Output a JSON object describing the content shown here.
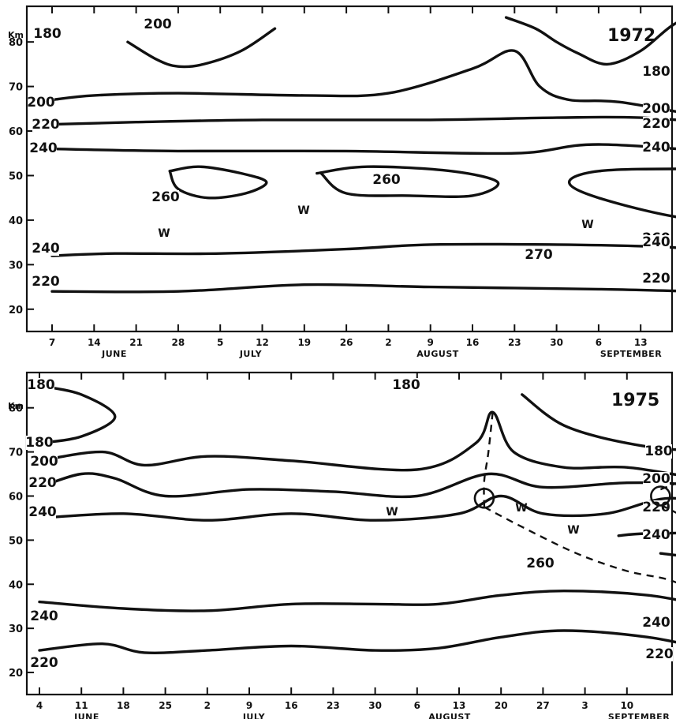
{
  "chart_data": [
    {
      "type": "line",
      "title": "1972",
      "ylabel_unit": "Km",
      "yticks": [
        20,
        30,
        40,
        50,
        60,
        70,
        80
      ],
      "ylim": [
        15,
        88
      ],
      "x_tick_labels": [
        "7",
        "14",
        "21",
        "28",
        "5",
        "12",
        "19",
        "26",
        "2",
        "9",
        "16",
        "23",
        "30",
        "6",
        "13"
      ],
      "months": [
        "JUNE",
        "JULY",
        "AUGUST",
        "SEPTEMBER"
      ],
      "marker_labels": [
        "W",
        "W",
        "W"
      ],
      "isotherms": [
        {
          "label": "180",
          "x": [
            10.8,
            11.5,
            12.0,
            12.5,
            13.2,
            14.0,
            14.8,
            15.5,
            16.5,
            17.5,
            18.5,
            19.0
          ],
          "y": [
            85.5,
            83.0,
            80.0,
            77.5,
            75.0,
            78.0,
            84.0,
            86.0,
            80.0,
            70.0,
            70.0,
            73.0
          ]
        },
        {
          "label": "200",
          "x": [
            1.8,
            2.5,
            3.0,
            3.6,
            4.5,
            5.3
          ],
          "y": [
            80.0,
            76.0,
            74.5,
            75.0,
            78.0,
            83.0
          ]
        },
        {
          "label": "200",
          "x": [
            0.0,
            1.0,
            3.0,
            6.0,
            8.0,
            10.0,
            11.0,
            11.6,
            12.3,
            13.5,
            16.0,
            18.5,
            19.0
          ],
          "y": [
            67.0,
            68.0,
            68.5,
            68.0,
            68.5,
            74.0,
            78.0,
            70.0,
            67.0,
            66.5,
            63.0,
            64.0,
            66.0
          ]
        },
        {
          "label": "220",
          "x": [
            0.0,
            2.0,
            5.0,
            9.0,
            12.0,
            14.0,
            16.5,
            18.5,
            19.0
          ],
          "y": [
            61.5,
            62.0,
            62.5,
            62.5,
            63.0,
            63.0,
            61.5,
            62.0,
            64.0
          ]
        },
        {
          "label": "240",
          "x": [
            0.0,
            3.0,
            7.0,
            11.0,
            13.0,
            16.5,
            18.0,
            19.0
          ],
          "y": [
            56.0,
            55.5,
            55.5,
            55.0,
            57.0,
            55.0,
            56.0,
            58.5
          ]
        },
        {
          "label": "260",
          "x": [
            2.8,
            3.5,
            4.5,
            5.1,
            4.6,
            3.7,
            3.0,
            2.8
          ],
          "y": [
            51.0,
            52.0,
            50.5,
            48.5,
            46.0,
            45.0,
            47.0,
            51.0
          ]
        },
        {
          "label": "260",
          "x": [
            6.3,
            7.5,
            9.5,
            10.6,
            10.0,
            8.5,
            7.0,
            6.4
          ],
          "y": [
            50.5,
            52.0,
            51.0,
            48.5,
            45.5,
            45.5,
            46.0,
            50.5
          ]
        },
        {
          "label": "260",
          "x": [
            19.0,
            18.4,
            17.0,
            15.0,
            13.0,
            12.3,
            13.0,
            15.0,
            17.0,
            19.0
          ],
          "y": [
            51.0,
            50.5,
            51.0,
            51.5,
            51.0,
            48.5,
            45.0,
            40.5,
            39.5,
            44.5
          ]
        },
        {
          "label": "270",
          "x": [
            15.3,
            15.5,
            15.9,
            16.0,
            15.8,
            15.4,
            15.3
          ],
          "y": [
            49.5,
            51.5,
            50.0,
            48.0,
            46.5,
            47.5,
            49.5
          ]
        },
        {
          "label": "240",
          "x": [
            0.0,
            1.5,
            4.0,
            7.0,
            9.0,
            12.0,
            14.5,
            17.0,
            19.0
          ],
          "y": [
            32.0,
            32.5,
            32.5,
            33.5,
            34.5,
            34.5,
            34.0,
            32.5,
            33.5
          ]
        },
        {
          "label": "220",
          "x": [
            0.0,
            3.0,
            6.0,
            9.0,
            13.0,
            16.0,
            19.0
          ],
          "y": [
            24.0,
            24.0,
            25.5,
            25.0,
            24.5,
            24.0,
            25.0
          ]
        }
      ]
    },
    {
      "type": "line",
      "title": "1975",
      "ylabel_unit": "Km",
      "yticks": [
        20,
        30,
        40,
        50,
        60,
        70,
        80
      ],
      "ylim": [
        15,
        88
      ],
      "x_tick_labels": [
        "4",
        "11",
        "18",
        "25",
        "2",
        "9",
        "16",
        "23",
        "30",
        "6",
        "13",
        "20",
        "27",
        "3",
        "10"
      ],
      "months": [
        "JUNE",
        "JULY",
        "AUGUST",
        "SEPTEMBER"
      ],
      "marker_labels": [
        "W",
        "W",
        "W"
      ],
      "isotherms": [
        {
          "label": "180",
          "x": [
            0.0,
            1.0,
            1.8,
            1.0,
            0.0
          ],
          "y": [
            85.0,
            83.0,
            78.0,
            73.5,
            72.0
          ]
        },
        {
          "label": "180",
          "x": [
            11.5,
            12.5,
            14.0,
            15.5,
            16.5,
            17.5,
            18.5,
            19.0
          ],
          "y": [
            83.0,
            76.0,
            72.0,
            70.5,
            73.0,
            74.5,
            74.0,
            73.0
          ]
        },
        {
          "label": "200",
          "x": [
            0.0,
            1.5,
            2.5,
            4.0,
            6.0,
            9.0,
            10.4,
            10.8,
            11.3,
            12.5,
            14.0,
            16.0,
            17.0,
            18.0,
            19.0
          ],
          "y": [
            68.0,
            70.0,
            67.0,
            69.0,
            68.0,
            66.0,
            72.0,
            79.0,
            70.0,
            66.5,
            66.5,
            64.0,
            67.0,
            68.5,
            67.0
          ]
        },
        {
          "label": "220",
          "x": [
            0.0,
            1.0,
            1.8,
            3.0,
            5.0,
            7.0,
            9.0,
            10.7,
            12.0,
            14.0,
            15.5,
            17.0,
            18.0,
            19.0
          ],
          "y": [
            62.0,
            65.0,
            64.0,
            60.0,
            61.5,
            61.0,
            60.0,
            65.0,
            62.0,
            63.0,
            62.5,
            60.0,
            59.0,
            62.0
          ]
        },
        {
          "label": "240",
          "x": [
            0.0,
            2.0,
            4.0,
            6.0,
            8.0,
            10.0,
            11.0,
            12.0,
            13.5,
            15.0,
            16.5,
            17.5,
            19.0
          ],
          "y": [
            55.0,
            56.0,
            54.5,
            56.0,
            54.5,
            56.0,
            60.0,
            56.0,
            56.0,
            59.5,
            57.0,
            55.0,
            55.5
          ]
        },
        {
          "label": "260",
          "x": [
            13.8,
            14.5,
            16.5,
            17.9,
            17.5,
            16.0,
            14.8
          ],
          "y": [
            51.0,
            51.5,
            51.5,
            50.0,
            47.0,
            46.0,
            47.0
          ]
        },
        {
          "label": "240",
          "x": [
            0.0,
            2.0,
            4.0,
            6.0,
            8.0,
            9.5,
            11.0,
            12.5,
            14.5,
            16.5,
            18.0,
            19.0
          ],
          "y": [
            36.0,
            34.5,
            34.0,
            35.5,
            35.5,
            35.5,
            37.5,
            38.5,
            37.5,
            34.5,
            35.5,
            35.0
          ]
        },
        {
          "label": "220",
          "x": [
            0.0,
            1.5,
            2.5,
            4.0,
            6.0,
            8.0,
            9.5,
            11.0,
            12.5,
            14.5,
            16.5,
            17.5,
            19.0
          ],
          "y": [
            25.0,
            26.5,
            24.5,
            25.0,
            26.0,
            25.0,
            25.5,
            28.0,
            29.5,
            28.0,
            24.5,
            25.5,
            28.0
          ]
        }
      ],
      "dashed_paths": [
        {
          "x": [
            10.8,
            10.7,
            10.6,
            10.6
          ],
          "y": [
            79.0,
            70.0,
            63.5,
            57.5
          ]
        },
        {
          "x": [
            10.6,
            11.5,
            12.8,
            14.0,
            15.0,
            15.6,
            16.2
          ],
          "y": [
            57.5,
            53.0,
            47.0,
            43.0,
            41.0,
            38.0,
            32.0
          ]
        },
        {
          "x": [
            14.8,
            15.5,
            16.6,
            17.6
          ],
          "y": [
            61.5,
            64.0,
            67.0,
            69.5
          ]
        },
        {
          "x": [
            14.8,
            15.4,
            16.2,
            16.8,
            17.3,
            17.8
          ],
          "y": [
            58.0,
            55.0,
            50.0,
            45.0,
            40.0,
            37.0
          ]
        }
      ],
      "circles": [
        {
          "x": 10.6,
          "y": 59.5
        },
        {
          "x": 14.8,
          "y": 60.0
        }
      ]
    }
  ]
}
